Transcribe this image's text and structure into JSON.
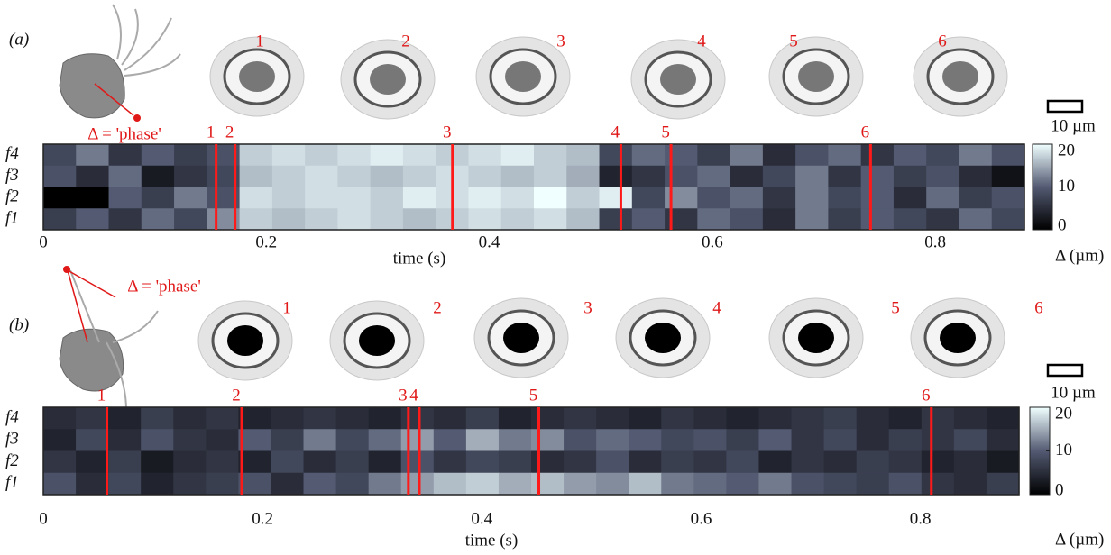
{
  "chart_data": [
    {
      "type": "heatmap",
      "panel_label": "(a)",
      "phase_label": "Δ = 'phase'",
      "scale_label": "10 µm",
      "cell_labels": [
        "1",
        "2",
        "3",
        "4",
        "5",
        "6"
      ],
      "rows": [
        "f4",
        "f3",
        "f2",
        "f1"
      ],
      "values": [
        [
          8,
          12,
          6,
          10,
          7,
          9,
          17,
          18,
          17,
          18,
          19,
          18,
          17,
          18,
          19,
          17,
          16,
          8,
          11,
          10,
          7,
          12,
          5,
          9,
          11,
          6,
          10,
          8,
          12,
          9
        ],
        [
          9,
          5,
          11,
          3,
          6,
          8,
          16,
          17,
          18,
          17,
          16,
          17,
          18,
          17,
          16,
          17,
          15,
          4,
          6,
          9,
          11,
          5,
          8,
          12,
          6,
          10,
          7,
          9,
          5,
          2
        ],
        [
          0,
          0,
          10,
          7,
          12,
          9,
          18,
          17,
          18,
          18,
          17,
          19,
          18,
          19,
          18,
          20,
          17,
          19,
          8,
          13,
          9,
          11,
          6,
          12,
          8,
          10,
          5,
          11,
          7,
          9
        ],
        [
          7,
          10,
          6,
          11,
          8,
          13,
          17,
          16,
          17,
          18,
          17,
          16,
          17,
          18,
          17,
          18,
          16,
          7,
          10,
          6,
          11,
          9,
          5,
          12,
          7,
          10,
          8,
          6,
          11,
          8
        ]
      ],
      "xlim": [
        0,
        0.88
      ],
      "xticks": [
        0,
        0.2,
        0.4,
        0.6,
        0.8
      ],
      "xlabel": "time (s)",
      "clim": [
        0,
        20
      ],
      "cticks": [
        0,
        10,
        20
      ],
      "colorbar_label": "Δ (µm)",
      "colormap": [
        "#000000",
        "#535a72",
        "#f0ffff"
      ],
      "marker_color": "#ff1a1a",
      "markers": [
        {
          "x": 0.155,
          "label": "1"
        },
        {
          "x": 0.172,
          "label": "2"
        },
        {
          "x": 0.367,
          "label": "3"
        },
        {
          "x": 0.518,
          "label": "4"
        },
        {
          "x": 0.563,
          "label": "5"
        },
        {
          "x": 0.742,
          "label": "6"
        }
      ]
    },
    {
      "type": "heatmap",
      "panel_label": "(b)",
      "phase_label": "Δ = 'phase'",
      "scale_label": "10 µm",
      "cell_labels": [
        "1",
        "2",
        "3",
        "4",
        "5",
        "6"
      ],
      "rows": [
        "f4",
        "f3",
        "f2",
        "f1"
      ],
      "values": [
        [
          5,
          6,
          4,
          7,
          5,
          6,
          4,
          5,
          6,
          5,
          4,
          6,
          5,
          7,
          4,
          5,
          6,
          5,
          4,
          6,
          5,
          4,
          5,
          6,
          7,
          5,
          4,
          6,
          5,
          4
        ],
        [
          4,
          8,
          5,
          9,
          6,
          5,
          10,
          7,
          12,
          8,
          11,
          14,
          10,
          15,
          12,
          13,
          9,
          11,
          10,
          8,
          9,
          7,
          10,
          6,
          8,
          5,
          7,
          6,
          8,
          5
        ],
        [
          6,
          4,
          7,
          3,
          5,
          6,
          4,
          8,
          5,
          7,
          4,
          9,
          6,
          8,
          7,
          5,
          6,
          9,
          5,
          7,
          6,
          8,
          4,
          6,
          5,
          7,
          6,
          4,
          5,
          3
        ],
        [
          9,
          5,
          8,
          4,
          6,
          7,
          9,
          5,
          10,
          8,
          12,
          14,
          16,
          17,
          15,
          16,
          14,
          13,
          16,
          12,
          11,
          10,
          12,
          9,
          8,
          7,
          9,
          6,
          5,
          7
        ]
      ],
      "xlim": [
        0,
        0.89
      ],
      "xticks": [
        0,
        0.2,
        0.4,
        0.6,
        0.8
      ],
      "xlabel": "time (s)",
      "clim": [
        0,
        20
      ],
      "cticks": [
        0,
        10,
        20
      ],
      "colorbar_label": "Δ (µm)",
      "colormap": [
        "#000000",
        "#535a72",
        "#f0ffff"
      ],
      "marker_color": "#ff1a1a",
      "markers": [
        {
          "x": 0.058,
          "label": "1"
        },
        {
          "x": 0.181,
          "label": "2"
        },
        {
          "x": 0.333,
          "label": "3"
        },
        {
          "x": 0.343,
          "label": "4"
        },
        {
          "x": 0.452,
          "label": "5"
        },
        {
          "x": 0.81,
          "label": "6"
        }
      ]
    }
  ]
}
